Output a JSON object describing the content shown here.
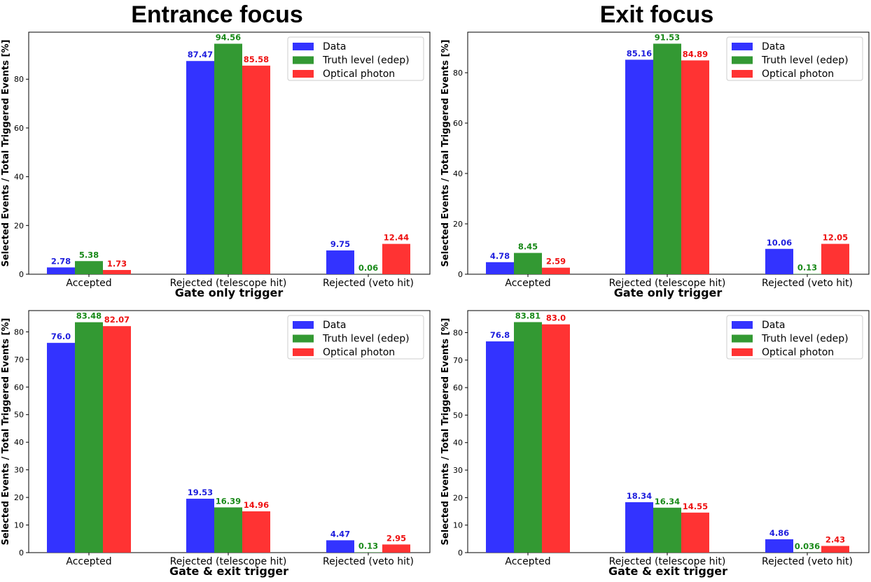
{
  "column_titles": [
    "Entrance focus",
    "Exit focus"
  ],
  "colors": {
    "data": "#3333ff",
    "truth": "#339933",
    "optical": "#ff3333",
    "label_data": "#1f1fdd",
    "label_truth": "#1a8a1a",
    "label_optical": "#ee1111"
  },
  "chart_data": [
    {
      "type": "bar",
      "column_title": "Entrance focus",
      "categories": [
        "Accepted",
        "Rejected (telescope hit)",
        "Rejected (veto hit)"
      ],
      "xlabel": "Gate only trigger",
      "ylabel": "Selected Events / Total Triggered Events [%]",
      "ylim": [
        0,
        99.3
      ],
      "yticks": [
        0,
        20,
        40,
        60,
        80
      ],
      "legend_position": "top-right",
      "series": [
        {
          "name": "Data",
          "values": [
            2.78,
            87.47,
            9.75
          ],
          "labels": [
            "2.78",
            "87.47",
            "9.75"
          ]
        },
        {
          "name": "Truth level (edep)",
          "values": [
            5.38,
            94.56,
            0.06
          ],
          "labels": [
            "5.38",
            "94.56",
            "0.06"
          ]
        },
        {
          "name": "Optical photon",
          "values": [
            1.73,
            85.58,
            12.44
          ],
          "labels": [
            "1.73",
            "85.58",
            "12.44"
          ]
        }
      ]
    },
    {
      "type": "bar",
      "column_title": "Exit focus",
      "categories": [
        "Accepted",
        "Rejected (telescope hit)",
        "Rejected (veto hit)"
      ],
      "xlabel": "Gate only trigger",
      "ylabel": "Selected Events / Total Triggered Events [%]",
      "ylim": [
        0,
        96.1
      ],
      "yticks": [
        0,
        20,
        40,
        60,
        80
      ],
      "legend_position": "top-right",
      "series": [
        {
          "name": "Data",
          "values": [
            4.78,
            85.16,
            10.06
          ],
          "labels": [
            "4.78",
            "85.16",
            "10.06"
          ]
        },
        {
          "name": "Truth level (edep)",
          "values": [
            8.45,
            91.53,
            0.13
          ],
          "labels": [
            "8.45",
            "91.53",
            "0.13"
          ]
        },
        {
          "name": "Optical photon",
          "values": [
            2.59,
            84.89,
            12.05
          ],
          "labels": [
            "2.59",
            "84.89",
            "12.05"
          ]
        }
      ]
    },
    {
      "type": "bar",
      "column_title": "Entrance focus",
      "categories": [
        "Accepted",
        "Rejected (telescope hit)",
        "Rejected (veto hit)"
      ],
      "xlabel": "Gate & exit trigger",
      "ylabel": "Selected Events / Total Triggered Events [%]",
      "ylim": [
        0,
        87.7
      ],
      "yticks": [
        0,
        10,
        20,
        30,
        40,
        50,
        60,
        70,
        80
      ],
      "legend_position": "top-right",
      "series": [
        {
          "name": "Data",
          "values": [
            76.0,
            19.53,
            4.47
          ],
          "labels": [
            "76.0",
            "19.53",
            "4.47"
          ]
        },
        {
          "name": "Truth level (edep)",
          "values": [
            83.48,
            16.39,
            0.13
          ],
          "labels": [
            "83.48",
            "16.39",
            "0.13"
          ]
        },
        {
          "name": "Optical photon",
          "values": [
            82.07,
            14.96,
            2.95
          ],
          "labels": [
            "82.07",
            "14.96",
            "2.95"
          ]
        }
      ]
    },
    {
      "type": "bar",
      "column_title": "Exit focus",
      "categories": [
        "Accepted",
        "Rejected (telescope hit)",
        "Rejected (veto hit)"
      ],
      "xlabel": "Gate & exit trigger",
      "ylabel": "Selected Events / Total Triggered Events [%]",
      "ylim": [
        0,
        88.0
      ],
      "yticks": [
        0,
        10,
        20,
        30,
        40,
        50,
        60,
        70,
        80
      ],
      "legend_position": "top-right",
      "series": [
        {
          "name": "Data",
          "values": [
            76.8,
            18.34,
            4.86
          ],
          "labels": [
            "76.8",
            "18.34",
            "4.86"
          ]
        },
        {
          "name": "Truth level (edep)",
          "values": [
            83.81,
            16.34,
            0.036
          ],
          "labels": [
            "83.81",
            "16.34",
            "0.036"
          ]
        },
        {
          "name": "Optical photon",
          "values": [
            83.0,
            14.55,
            2.43
          ],
          "labels": [
            "83.0",
            "14.55",
            "2.43"
          ]
        }
      ]
    }
  ]
}
